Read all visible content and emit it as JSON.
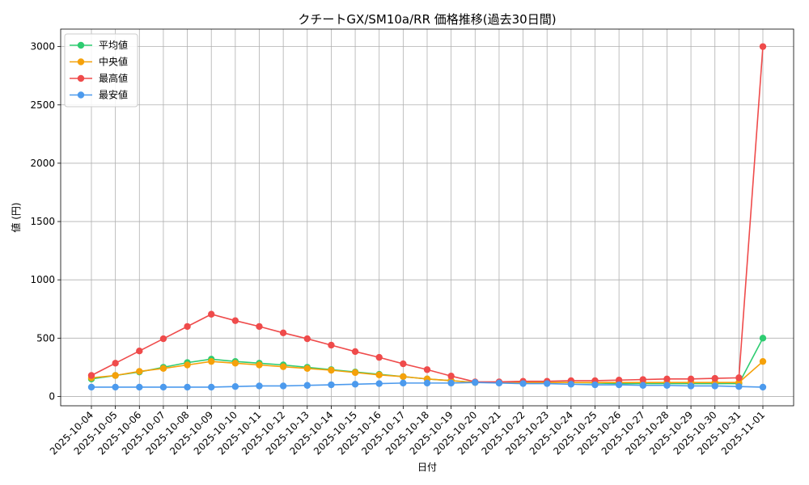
{
  "chart_data": {
    "type": "line",
    "title": "クチートGX/SM10a/RR 価格推移(過去30日間)",
    "xlabel": "日付",
    "ylabel": "値 (円)",
    "ylim": [
      -80,
      3150
    ],
    "yticks": [
      0,
      500,
      1000,
      1500,
      2000,
      2500,
      3000
    ],
    "grid": true,
    "legend_position": "top-left",
    "categories": [
      "2025-10-04",
      "2025-10-05",
      "2025-10-06",
      "2025-10-07",
      "2025-10-08",
      "2025-10-09",
      "2025-10-10",
      "2025-10-11",
      "2025-10-12",
      "2025-10-13",
      "2025-10-14",
      "2025-10-15",
      "2025-10-16",
      "2025-10-17",
      "2025-10-18",
      "2025-10-19",
      "2025-10-20",
      "2025-10-21",
      "2025-10-22",
      "2025-10-23",
      "2025-10-24",
      "2025-10-25",
      "2025-10-26",
      "2025-10-27",
      "2025-10-28",
      "2025-10-29",
      "2025-10-30",
      "2025-10-31",
      "2025-11-01"
    ],
    "series": [
      {
        "name": "平均値",
        "color": "#2ecc71",
        "values": [
          150,
          180,
          210,
          250,
          290,
          320,
          300,
          285,
          270,
          250,
          230,
          210,
          190,
          170,
          150,
          135,
          120,
          120,
          120,
          120,
          120,
          115,
          110,
          110,
          110,
          110,
          110,
          110,
          500
        ]
      },
      {
        "name": "中央値",
        "color": "#f5a10a",
        "values": [
          160,
          180,
          215,
          240,
          270,
          300,
          285,
          270,
          255,
          240,
          225,
          205,
          185,
          170,
          150,
          135,
          120,
          120,
          120,
          120,
          120,
          120,
          120,
          120,
          120,
          120,
          120,
          120,
          300
        ]
      },
      {
        "name": "最高値",
        "color": "#ef4b4b",
        "values": [
          180,
          285,
          390,
          495,
          600,
          705,
          650,
          600,
          545,
          495,
          440,
          385,
          335,
          280,
          230,
          175,
          125,
          125,
          130,
          130,
          135,
          135,
          140,
          145,
          150,
          150,
          155,
          160,
          3000
        ]
      },
      {
        "name": "最安値",
        "color": "#4c9aed",
        "values": [
          80,
          80,
          80,
          80,
          80,
          80,
          85,
          90,
          90,
          95,
          100,
          105,
          110,
          115,
          115,
          115,
          120,
          115,
          110,
          110,
          105,
          100,
          100,
          95,
          95,
          90,
          90,
          85,
          80
        ]
      }
    ]
  }
}
